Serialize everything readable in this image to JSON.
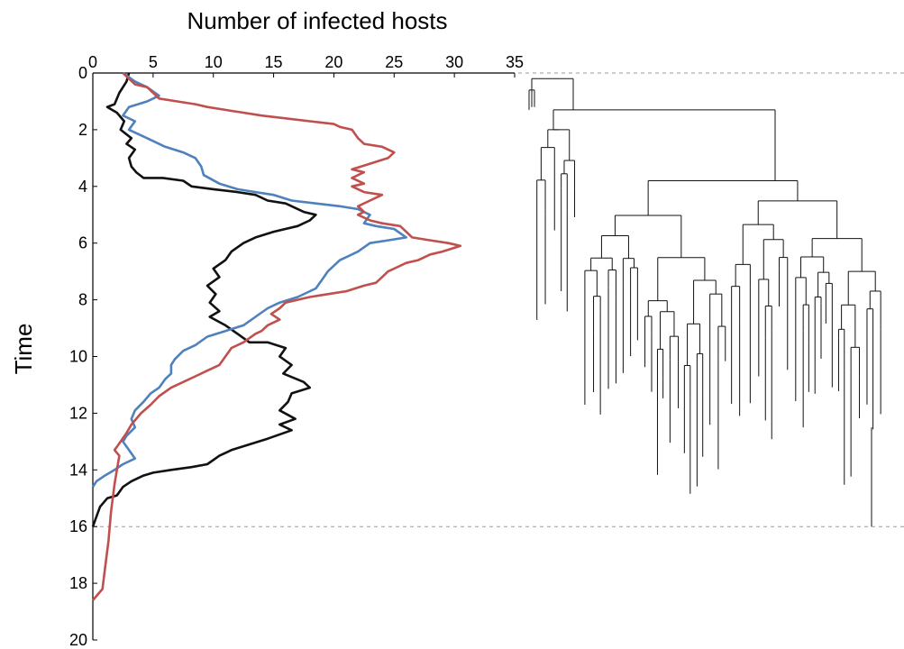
{
  "chart_data": [
    {
      "type": "line",
      "title": "",
      "xlabel": "Number of infected hosts",
      "ylabel": "Time",
      "xlim": [
        0,
        35
      ],
      "ylim": [
        0,
        20
      ],
      "y_inverted": true,
      "xticks": [
        "0",
        "5",
        "10",
        "15",
        "20",
        "25",
        "30",
        "35"
      ],
      "yticks": [
        "0",
        "2",
        "4",
        "6",
        "8",
        "10",
        "12",
        "14",
        "16",
        "18",
        "20"
      ],
      "grid": false,
      "colors": {
        "black": "#111111",
        "blue": "#4f81bd",
        "red": "#c0504d"
      },
      "series": [
        {
          "color": "#111111",
          "points": [
            [
              3,
              0
            ],
            [
              2.8,
              0.3
            ],
            [
              2.2,
              0.7
            ],
            [
              1.8,
              1.1
            ],
            [
              1.2,
              1.2
            ],
            [
              2.0,
              1.4
            ],
            [
              2.6,
              1.7
            ],
            [
              2.3,
              2.0
            ],
            [
              3.2,
              2.3
            ],
            [
              2.8,
              2.5
            ],
            [
              3.5,
              2.7
            ],
            [
              3.0,
              3.0
            ],
            [
              3.2,
              3.3
            ],
            [
              3.6,
              3.5
            ],
            [
              4.2,
              3.7
            ],
            [
              5.8,
              3.7
            ],
            [
              7.5,
              3.8
            ],
            [
              8.2,
              4.0
            ],
            [
              10,
              4.1
            ],
            [
              12,
              4.2
            ],
            [
              13.5,
              4.3
            ],
            [
              14.5,
              4.5
            ],
            [
              16,
              4.6
            ],
            [
              17.5,
              4.9
            ],
            [
              18.5,
              5.0
            ],
            [
              18,
              5.2
            ],
            [
              17,
              5.4
            ],
            [
              15,
              5.6
            ],
            [
              13.5,
              5.8
            ],
            [
              12.5,
              6.0
            ],
            [
              11.5,
              6.3
            ],
            [
              11,
              6.6
            ],
            [
              10,
              6.9
            ],
            [
              10.5,
              7.2
            ],
            [
              9.5,
              7.5
            ],
            [
              10.2,
              7.8
            ],
            [
              9.7,
              8.1
            ],
            [
              10.5,
              8.4
            ],
            [
              9.7,
              8.6
            ],
            [
              11,
              8.9
            ],
            [
              12,
              9.2
            ],
            [
              13,
              9.5
            ],
            [
              14.5,
              9.5
            ],
            [
              16,
              9.7
            ],
            [
              15.5,
              10
            ],
            [
              16.5,
              10.3
            ],
            [
              15.8,
              10.6
            ],
            [
              17.5,
              10.9
            ],
            [
              18,
              11.1
            ],
            [
              16.5,
              11.3
            ],
            [
              16.2,
              11.6
            ],
            [
              15.5,
              11.9
            ],
            [
              16.8,
              12.2
            ],
            [
              15.5,
              12.4
            ],
            [
              16.5,
              12.6
            ],
            [
              14.5,
              12.9
            ],
            [
              13,
              13.1
            ],
            [
              11.5,
              13.3
            ],
            [
              10.5,
              13.5
            ],
            [
              9.5,
              13.8
            ],
            [
              8.2,
              13.9
            ],
            [
              6.5,
              14.0
            ],
            [
              5,
              14.1
            ],
            [
              4.2,
              14.2
            ],
            [
              3.2,
              14.4
            ],
            [
              2.5,
              14.6
            ],
            [
              2,
              14.9
            ],
            [
              1.2,
              15.0
            ],
            [
              0.6,
              15.3
            ],
            [
              0,
              16
            ]
          ]
        },
        {
          "color": "#4f81bd",
          "points": [
            [
              2.5,
              0
            ],
            [
              3.5,
              0.3
            ],
            [
              4.5,
              0.5
            ],
            [
              5.5,
              0.8
            ],
            [
              4.5,
              1.0
            ],
            [
              3,
              1.2
            ],
            [
              2.5,
              1.5
            ],
            [
              3.5,
              1.7
            ],
            [
              3.0,
              2.0
            ],
            [
              4.5,
              2.3
            ],
            [
              6.0,
              2.6
            ],
            [
              7.5,
              2.8
            ],
            [
              8.5,
              3.0
            ],
            [
              9.0,
              3.3
            ],
            [
              9.2,
              3.6
            ],
            [
              10.5,
              3.9
            ],
            [
              12,
              4.1
            ],
            [
              13.5,
              4.2
            ],
            [
              15,
              4.3
            ],
            [
              16.5,
              4.5
            ],
            [
              18.5,
              4.6
            ],
            [
              20.5,
              4.7
            ],
            [
              22,
              4.8
            ],
            [
              23,
              5.0
            ],
            [
              22.5,
              5.3
            ],
            [
              23.5,
              5.4
            ],
            [
              25,
              5.5
            ],
            [
              26,
              5.8
            ],
            [
              24.5,
              5.9
            ],
            [
              23,
              6.0
            ],
            [
              22,
              6.3
            ],
            [
              20.5,
              6.6
            ],
            [
              19.5,
              7.0
            ],
            [
              19,
              7.3
            ],
            [
              18.5,
              7.6
            ],
            [
              17,
              7.9
            ],
            [
              15.5,
              8.1
            ],
            [
              14.5,
              8.3
            ],
            [
              13.5,
              8.6
            ],
            [
              12.5,
              8.9
            ],
            [
              11,
              9.1
            ],
            [
              9.5,
              9.3
            ],
            [
              8.5,
              9.6
            ],
            [
              7.5,
              9.8
            ],
            [
              6.8,
              10.1
            ],
            [
              6.5,
              10.3
            ],
            [
              6.5,
              10.6
            ],
            [
              6.0,
              10.8
            ],
            [
              5.5,
              11.1
            ],
            [
              4.8,
              11.3
            ],
            [
              4.2,
              11.6
            ],
            [
              3.5,
              11.9
            ],
            [
              3.2,
              12.2
            ],
            [
              3.5,
              12.5
            ],
            [
              2.8,
              12.8
            ],
            [
              2.5,
              13.0
            ],
            [
              3.0,
              13.3
            ],
            [
              3.5,
              13.6
            ],
            [
              2.5,
              13.8
            ],
            [
              1.8,
              14.0
            ],
            [
              1.0,
              14.2
            ],
            [
              0.3,
              14.4
            ],
            [
              0,
              14.6
            ]
          ]
        },
        {
          "color": "#c0504d",
          "points": [
            [
              2.5,
              0
            ],
            [
              3.5,
              0.4
            ],
            [
              4.5,
              0.5
            ],
            [
              5.5,
              0.9
            ],
            [
              7.0,
              1.0
            ],
            [
              8.5,
              1.1
            ],
            [
              9.5,
              1.2
            ],
            [
              11,
              1.3
            ],
            [
              12.5,
              1.4
            ],
            [
              14,
              1.5
            ],
            [
              16,
              1.6
            ],
            [
              18,
              1.7
            ],
            [
              20,
              1.8
            ],
            [
              20.5,
              1.9
            ],
            [
              21.5,
              2.0
            ],
            [
              22,
              2.3
            ],
            [
              22.5,
              2.5
            ],
            [
              24,
              2.6
            ],
            [
              25,
              2.8
            ],
            [
              24.5,
              3.0
            ],
            [
              23,
              3.2
            ],
            [
              21.5,
              3.4
            ],
            [
              22.5,
              3.5
            ],
            [
              21.5,
              3.7
            ],
            [
              22.5,
              3.9
            ],
            [
              21.5,
              4.0
            ],
            [
              22.5,
              4.2
            ],
            [
              24,
              4.3
            ],
            [
              23,
              4.5
            ],
            [
              22,
              4.7
            ],
            [
              22.5,
              4.9
            ],
            [
              22,
              5.0
            ],
            [
              23,
              5.2
            ],
            [
              24,
              5.3
            ],
            [
              25.5,
              5.4
            ],
            [
              26,
              5.6
            ],
            [
              26.5,
              5.8
            ],
            [
              28,
              5.9
            ],
            [
              29.5,
              6.0
            ],
            [
              30.5,
              6.1
            ],
            [
              29,
              6.3
            ],
            [
              28,
              6.4
            ],
            [
              27,
              6.6
            ],
            [
              26,
              6.7
            ],
            [
              25,
              6.9
            ],
            [
              24.5,
              7.0
            ],
            [
              24,
              7.2
            ],
            [
              23.5,
              7.4
            ],
            [
              22.5,
              7.5
            ],
            [
              21,
              7.7
            ],
            [
              19.5,
              7.8
            ],
            [
              18,
              7.9
            ],
            [
              16,
              8.1
            ],
            [
              15.5,
              8.3
            ],
            [
              14.8,
              8.5
            ],
            [
              15.5,
              8.7
            ],
            [
              14.5,
              8.9
            ],
            [
              14,
              9.1
            ],
            [
              13.5,
              9.2
            ],
            [
              12.5,
              9.5
            ],
            [
              11.5,
              9.7
            ],
            [
              11,
              10.0
            ],
            [
              10.5,
              10.3
            ],
            [
              9.5,
              10.5
            ],
            [
              8.5,
              10.7
            ],
            [
              7.5,
              10.9
            ],
            [
              6.5,
              11.1
            ],
            [
              5.5,
              11.4
            ],
            [
              4.8,
              11.7
            ],
            [
              4.0,
              12.0
            ],
            [
              3.2,
              12.4
            ],
            [
              2.8,
              12.7
            ],
            [
              2.3,
              13.0
            ],
            [
              1.8,
              13.3
            ],
            [
              2.2,
              13.5
            ],
            [
              2.0,
              14.0
            ],
            [
              1.8,
              14.5
            ],
            [
              1.5,
              15.5
            ],
            [
              1.3,
              16.5
            ],
            [
              1.0,
              17.5
            ],
            [
              0.8,
              18.2
            ],
            [
              0,
              18.6
            ]
          ]
        }
      ]
    },
    {
      "type": "tree",
      "time_lim": [
        0,
        20
      ],
      "reference_lines": [
        0,
        16
      ],
      "color": "#111111"
    }
  ]
}
